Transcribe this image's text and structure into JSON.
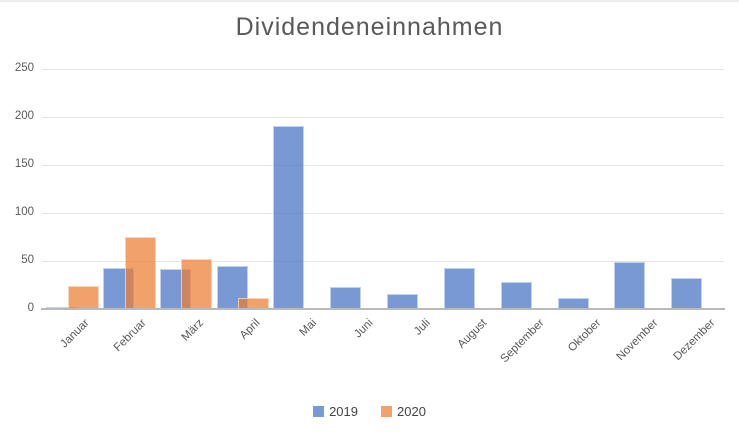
{
  "chart_data": {
    "type": "bar",
    "title": "Dividendeneinnahmen",
    "categories": [
      "Januar",
      "Februar",
      "März",
      "April",
      "Mai",
      "Juni",
      "Juli",
      "August",
      "September",
      "Oktober",
      "November",
      "Dezember"
    ],
    "series": [
      {
        "name": "2019",
        "color": "rgba(68,114,196,0.72)",
        "values": [
          2,
          42,
          41,
          44,
          190,
          22,
          15,
          42,
          28,
          11,
          48,
          32
        ]
      },
      {
        "name": "2020",
        "color": "rgba(237,125,49,0.72)",
        "values": [
          23,
          74,
          52,
          11,
          null,
          null,
          null,
          null,
          null,
          null,
          null,
          null
        ]
      }
    ],
    "xlabel": "",
    "ylabel": "",
    "ylim": [
      0,
      250
    ],
    "yticks": [
      0,
      50,
      100,
      150,
      200,
      250
    ],
    "grid": true,
    "legend_position": "bottom",
    "colors": {
      "title_text": "#595959",
      "axis_text": "#595959",
      "gridline": "#e4e4e4",
      "axis_line": "#b9b9b9",
      "top_divider": "#ececec",
      "background": "#ffffff"
    }
  }
}
